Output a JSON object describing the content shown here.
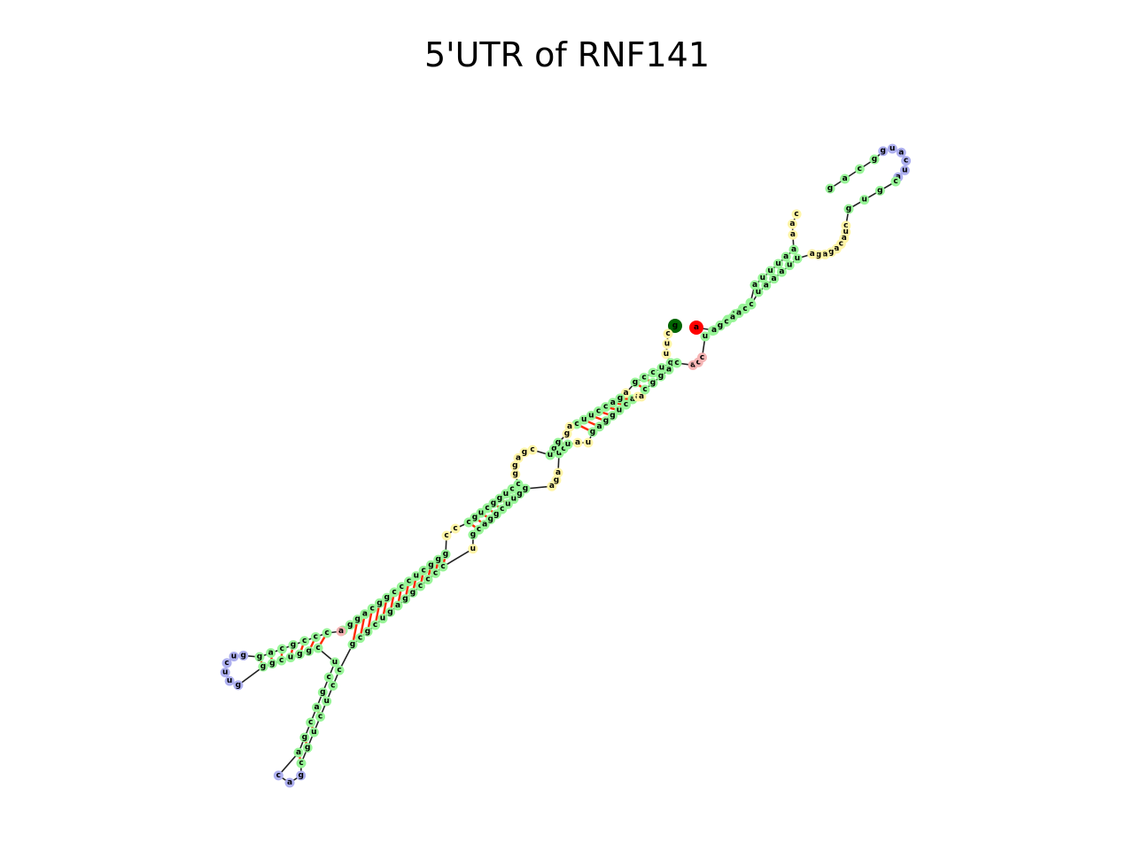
{
  "title": "5'UTR of RNF141",
  "colors": {
    "stem": "#98f598",
    "loop_internal": "#fff5a8",
    "loop_hairpin": "#aeb0f0",
    "loop_multi": "#f5b4b4",
    "five_prime": "#006400",
    "three_prime": "#ff0000",
    "pair_bond": "#ff2a00",
    "backbone": "#222222"
  },
  "segments": [
    {
      "name": "five-prime-start",
      "type": "end5",
      "text": "g"
    },
    {
      "name": "loop-top-left",
      "type": "internal",
      "text": "cuu"
    },
    {
      "name": "stem-a-strand-1",
      "type": "stem",
      "text": "guccg"
    },
    {
      "name": "stem-a-loop-1",
      "type": "internal",
      "text": "a"
    },
    {
      "name": "stem-b-strand-1",
      "type": "stem",
      "text": "gaccuuc"
    },
    {
      "name": "loop-mid-1",
      "type": "internal",
      "text": "ag"
    },
    {
      "name": "stem-c-strand-1",
      "type": "stem",
      "text": "ggu"
    },
    {
      "name": "loop-mid-2",
      "type": "internal",
      "text": "cgagg"
    },
    {
      "name": "stem-d-strand-1",
      "type": "stem",
      "text": "ccuggcugc"
    },
    {
      "name": "loop-mid-3",
      "type": "internal",
      "text": "cc"
    },
    {
      "name": "stem-e-strand-1",
      "type": "stem",
      "text": "gggcucccggcaggc"
    },
    {
      "name": "multiloop-1",
      "type": "multi",
      "text": "a"
    },
    {
      "name": "branch-1-strand-1",
      "type": "stem",
      "text": "cccgcag"
    },
    {
      "name": "hairpin-left",
      "type": "hairpin",
      "text": "gucuug"
    },
    {
      "name": "branch-1-strand-2",
      "type": "stem",
      "text": "ggcuggc"
    },
    {
      "name": "multiloop-2",
      "type": "multi",
      "text": ""
    },
    {
      "name": "branch-2-strand-1",
      "type": "stem",
      "text": "ucgacga"
    },
    {
      "name": "hairpin-bottom",
      "type": "hairpin",
      "text": "cag"
    },
    {
      "name": "branch-2-strand-2",
      "type": "stem",
      "text": "cgucucc"
    },
    {
      "name": "stem-e-strand-2",
      "type": "stem",
      "text": "gcgcugaggcccc"
    },
    {
      "name": "loop-mid-4",
      "type": "internal",
      "text": "u"
    },
    {
      "name": "stem-d-strand-2",
      "type": "stem",
      "text": "gcaggcuugg"
    },
    {
      "name": "loop-mid-5",
      "type": "internal",
      "text": "aga"
    },
    {
      "name": "stem-c-strand-2",
      "type": "stem",
      "text": "ucu"
    },
    {
      "name": "loop-mid-6",
      "type": "internal",
      "text": "au"
    },
    {
      "name": "stem-b-strand-2",
      "type": "stem",
      "text": "gagguca"
    },
    {
      "name": "loop-mid-7",
      "type": "internal",
      "text": "aa"
    },
    {
      "name": "stem-a-strand-2",
      "type": "stem",
      "text": "cggac"
    },
    {
      "name": "loop-bottom-right",
      "type": "multi",
      "text": "acc"
    },
    {
      "name": "stem-f-strand-1",
      "type": "stem",
      "text": "ucguugg"
    },
    {
      "name": "stem-f-loop",
      "type": "internal",
      "text": ""
    },
    {
      "name": "stem-g-strand-1",
      "type": "stem",
      "text": "auuuaa"
    },
    {
      "name": "loop-large-1",
      "type": "internal",
      "text": "aac"
    },
    {
      "name": "stem-h-strand-1",
      "type": "stem",
      "text": "gacg"
    },
    {
      "name": "hairpin-top",
      "type": "hairpin",
      "text": "guacua"
    },
    {
      "name": "stem-h-strand-2",
      "type": "stem",
      "text": "cgug"
    },
    {
      "name": "loop-large-2",
      "type": "internal",
      "text": "cuacagaga"
    },
    {
      "name": "stem-g-strand-2",
      "type": "stem",
      "text": "uuaaau"
    },
    {
      "name": "stem-f-strand-2",
      "type": "stem",
      "text": "ccaacga"
    },
    {
      "name": "three-prime-end",
      "type": "end3",
      "text": "a"
    }
  ]
}
